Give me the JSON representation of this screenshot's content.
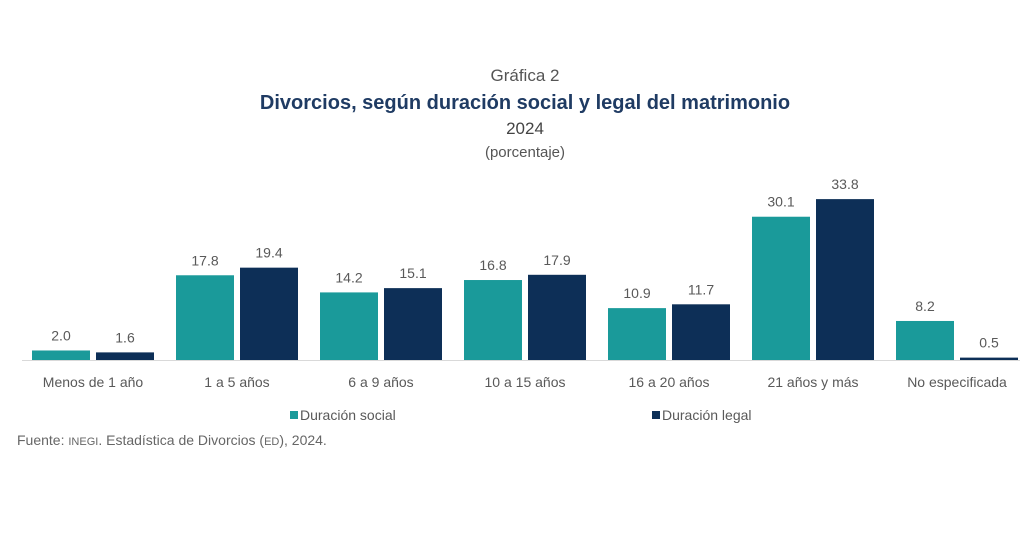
{
  "chart_data": {
    "type": "bar",
    "label": "Gráfica 2",
    "title": "Divorcios, según duración social y legal del matrimonio",
    "subtitle": "2024",
    "unit_label": "(porcentaje)",
    "categories": [
      "Menos de 1 año",
      "1 a 5 años",
      "6 a 9 años",
      "10 a 15 años",
      "16 a 20 años",
      "21 años y más",
      "No especificada"
    ],
    "series": [
      {
        "name": "Duración social",
        "color": "#1a9a9a",
        "values": [
          2.0,
          17.8,
          14.2,
          16.8,
          10.9,
          30.1,
          8.2
        ]
      },
      {
        "name": "Duración legal",
        "color": "#0d2f57",
        "values": [
          1.6,
          19.4,
          15.1,
          17.9,
          11.7,
          33.8,
          0.5
        ]
      }
    ],
    "xlabel": "",
    "ylabel": "",
    "ylim": [
      0,
      35
    ],
    "grid": false,
    "legend": "bottom",
    "source_prefix": "Fuente: ",
    "source_org": "INEGI",
    "source_mid": ". Estadística de Divorcios (",
    "source_abbr": "ED",
    "source_end": "), 2024."
  }
}
